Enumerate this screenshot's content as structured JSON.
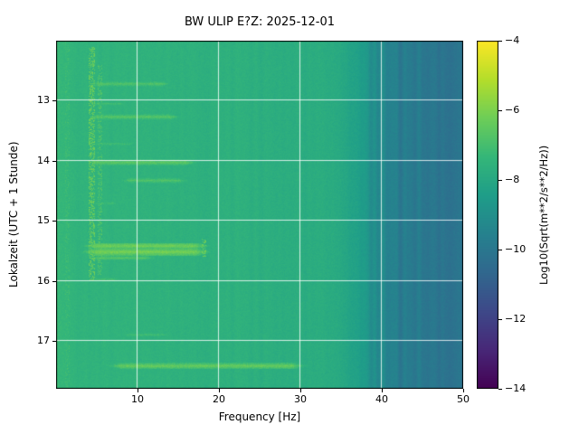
{
  "chart_data": {
    "type": "heatmap",
    "title": "BW ULIP  E?Z: 2025-12-01",
    "xlabel": "Frequency [Hz]",
    "ylabel": "Lokalzeit (UTC + 1 Stunde)",
    "colorbar_label": "Log10(Sqrt(m**2/s**2/Hz))",
    "x_range": [
      0,
      50
    ],
    "y_range": [
      12.0,
      17.8
    ],
    "x_ticks": [
      10,
      20,
      30,
      40,
      50
    ],
    "y_ticks": [
      13,
      14,
      15,
      16,
      17
    ],
    "value_range": [
      -14,
      -4
    ],
    "colorbar_ticks": [
      -4,
      -6,
      -8,
      -10,
      -12,
      -14
    ],
    "grid": true,
    "legend_position": "colorbar-right",
    "colormap": "viridis",
    "colormap_stops": [
      "#440154",
      "#482878",
      "#3e4989",
      "#31688e",
      "#26828e",
      "#1f9e89",
      "#35b779",
      "#6ece58",
      "#b5de2b",
      "#fde725"
    ],
    "background_profile": {
      "frequencies": [
        0,
        1,
        3,
        8,
        15,
        25,
        32,
        35,
        38,
        40,
        43,
        47,
        50
      ],
      "levels": [
        -7.3,
        -7.4,
        -7.5,
        -7.55,
        -7.6,
        -7.7,
        -7.8,
        -8.0,
        -8.6,
        -9.3,
        -9.8,
        -10.1,
        -10.2
      ]
    },
    "events": [
      {
        "time": 12.72,
        "f_min": 4,
        "f_max": 14,
        "level": -6.5,
        "half_width": 0.05
      },
      {
        "time": 13.05,
        "f_min": 4,
        "f_max": 9,
        "level": -6.8,
        "half_width": 0.04
      },
      {
        "time": 13.27,
        "f_min": 4,
        "f_max": 15,
        "level": -6.4,
        "half_width": 0.05
      },
      {
        "time": 13.72,
        "f_min": 4,
        "f_max": 10,
        "level": -6.8,
        "half_width": 0.04
      },
      {
        "time": 14.03,
        "f_min": 4,
        "f_max": 17,
        "level": -6.3,
        "half_width": 0.05
      },
      {
        "time": 14.33,
        "f_min": 8,
        "f_max": 16,
        "level": -6.5,
        "half_width": 0.05
      },
      {
        "time": 14.71,
        "f_min": 4,
        "f_max": 8,
        "level": -6.8,
        "half_width": 0.04
      },
      {
        "time": 15.42,
        "f_min": 4,
        "f_max": 18,
        "level": -5.9,
        "half_width": 0.05
      },
      {
        "time": 15.52,
        "f_min": 4,
        "f_max": 18,
        "level": -5.8,
        "half_width": 0.06
      },
      {
        "time": 15.62,
        "f_min": 4,
        "f_max": 12,
        "level": -6.4,
        "half_width": 0.04
      },
      {
        "time": 15.98,
        "f_min": 4,
        "f_max": 8,
        "level": -6.7,
        "half_width": 0.04
      },
      {
        "time": 16.9,
        "f_min": 8,
        "f_max": 14,
        "level": -6.8,
        "half_width": 0.04
      },
      {
        "time": 17.42,
        "f_min": 7,
        "f_max": 30,
        "level": -6.1,
        "half_width": 0.05
      }
    ],
    "vertical_bands": [
      {
        "freq": 4.4,
        "width": 0.7,
        "t_start": 12.1,
        "t_end": 16.0,
        "level": -6.0
      },
      {
        "freq": 5.4,
        "width": 0.5,
        "t_start": 12.4,
        "t_end": 15.9,
        "level": -6.5
      },
      {
        "freq": 18.2,
        "width": 0.6,
        "t_start": 15.3,
        "t_end": 15.6,
        "level": -5.9
      },
      {
        "freq": 1.4,
        "width": 0.5,
        "t_start": 12.0,
        "t_end": 17.8,
        "level": -6.9
      }
    ],
    "noise": {
      "pixel": 0.15,
      "column": 0.08,
      "column_highfreq": 0.3,
      "highfreq_start": 36
    }
  }
}
